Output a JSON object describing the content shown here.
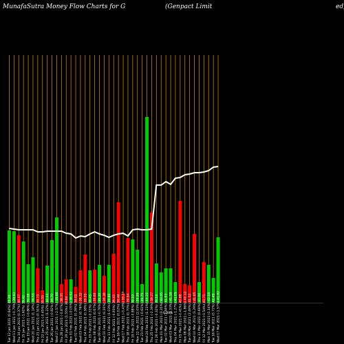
{
  "chart_data": {
    "type": "bar",
    "title_left": "MunafaSutra  Money Flow  Charts for G",
    "title_mid": "(Genpact Limit",
    "title_right": "ed)",
    "mid_label": "0.00%",
    "categories": [
      "Wed 17 Mar 2021",
      "Tue 16 Mar 2021",
      "Mon 15 Mar 2021",
      "Fri 12 Mar 2021",
      "Thu 11 Mar 2021",
      "Wed 10 Mar 2021",
      "Tue 09 Mar 2021",
      "Mon 08 Mar 2021",
      "Fri 05 Mar 2021",
      "Thu 04 Mar 2021",
      "Wed 03 Mar 2021",
      "Tue 02 Mar 2021",
      "Mon 01 Mar 2021",
      "Fri 26 Feb 2021",
      "Thu 25 Feb 2021",
      "Wed 24 Feb 2021",
      "Tue 23 Feb 2021",
      "Mon 22 Feb 2021",
      "Fri 19 Feb 2021",
      "Thu 18 Feb 2021",
      "Wed 17 Feb 2021",
      "Tue 16 Feb 2021",
      "Fri 12 Feb 2021",
      "Thu 11 Feb 2021",
      "Wed 10 Feb 2021",
      "Tue 09 Feb 2021",
      "Mon 08 Feb 2021",
      "Fri 05 Feb 2021",
      "Thu 04 Feb 2021",
      "Wed 03 Feb 2021",
      "Tue 02 Feb 2021",
      "Mon 01 Feb 2021",
      "Fri 29 Jan 2021",
      "Thu 28 Jan 2021",
      "Wed 27 Jan 2021",
      "Tue 26 Jan 2021",
      "Mon 25 Jan 2021",
      "Fri 22 Jan 2021",
      "Thu 21 Jan 2021",
      "Wed 20 Jan 2021",
      "Tue 19 Jan 2021",
      "Fri 15 Jan 2021",
      "Thu 14 Jan 2021",
      "Wed 13 Jan 2021",
      "Tue 12 Jan 2021"
    ],
    "tick_labels": [
      "Wed 17 Mar 2021 (-1.57%) 41.82",
      "Tue 16 Mar 2021 (0.72%) 42.49",
      "Mon 15 Mar 2021 (1.14%) 42.18",
      "Fri 12 Mar 2021 (-0.54%) 41.71",
      "Thu 11 Mar 2021 (0.69%) 41.94",
      "Wed 10 Mar 2021 (1.29%) 41.65",
      "Tue 09 Mar 2021 (2.49%) 41.12",
      "Mon 08 Mar 2021 (-1.86%) 40.12",
      "Fri 05 Mar 2021 (-0.41%) 40.88",
      "Thu 04 Mar 2021 (-1.27%) 41.05",
      "Wed 03 Mar 2021 (1.33%) 41.58",
      "Tue 02 Mar 2021 (1.44%) 41.03",
      "Mon 01 Mar 2021 (3.35%) 40.45",
      "Fri 26 Feb 2021 (-0.32%) 39.14",
      "Thu 25 Feb 2021 (-2.39%) 39.27",
      "Wed 24 Feb 2021 (1.21%) 40.23",
      "Tue 23 Feb 2021 (-0.61%) 39.75",
      "Mon 22 Feb 2021 (2.05%) 39.99",
      "Fri 19 Feb 2021 (-0.88%) 39.19",
      "Thu 18 Feb 2021 (0.70%) 39.54",
      "Wed 17 Feb 2021 (-0.43%) 39.27",
      "Tue 16 Feb 2021 (0.02%) 39.44",
      "Fri 12 Feb 2021 (-0.93%) 39.43",
      "Thu 11 Feb 2021 (1.03%) 39.80",
      "Wed 10 Feb 2021 (0.00%) 39.39",
      "Tue 09 Feb 2021 (-0.76%) 39.39",
      "Mon 08 Feb 2021 (0.67%) 39.69",
      "Fri 05 Feb 2021 (-0.31%) 39.43",
      "Thu 04 Feb 2021 (0.58%) 39.55",
      "Wed 03 Feb 2021 (0.76%) 39.32",
      "Tue 02 Feb 2021 (0.26%) 39.02",
      "Mon 01 Feb 2021 (-0.05%) 38.92",
      "Fri 29 Jan 2021 (1.55%) 38.94",
      "Thu 28 Jan 2021 (-0.87%) 38.35",
      "Wed 27 Jan 2021 (-2.57%) 38.68",
      "Tue 26 Jan 2021 (-0.82%) 39.70",
      "Mon 25 Jan 2021 (1.22%) 40.03",
      "Fri 22 Jan 2021 (-0.45%) 39.55",
      "Thu 21 Jan 2021 (0.51%) 39.73",
      "Wed 20 Jan 2021 (1.14%) 39.53",
      "Tue 19 Jan 2021 (-0.86%) 39.08",
      "Fri 15 Jan 2021 (-1.62%) 39.42",
      "Thu 14 Jan 2021 (0.37%) 40.07",
      "Wed 13 Jan 2021 (-0.79%) 39.92",
      "Tue 12 Jan 2021 (0.64%) 40.24"
    ],
    "values": [
      95,
      36,
      55,
      59,
      30,
      100,
      25,
      27,
      148,
      30,
      50,
      50,
      44,
      57,
      131,
      270,
      27,
      77,
      92,
      94,
      13,
      146,
      71,
      55,
      39,
      55,
      48,
      47,
      70,
      47,
      23,
      34,
      34,
      27,
      124,
      91,
      54,
      18,
      50,
      66,
      56,
      89,
      98,
      104,
      105
    ],
    "colors": [
      "green",
      "green",
      "green",
      "red",
      "green",
      "red",
      "red",
      "red",
      "red",
      "green",
      "green",
      "green",
      "green",
      "green",
      "red",
      "green",
      "green",
      "green",
      "green",
      "red",
      "red",
      "red",
      "red",
      "green",
      "red",
      "green",
      "red",
      "green",
      "red",
      "red",
      "red",
      "green",
      "red",
      "red",
      "green",
      "green",
      "green",
      "red",
      "red",
      "green",
      "green",
      "green",
      "red",
      "green",
      "green"
    ],
    "line_values": [
      198,
      197,
      192,
      190,
      189,
      189,
      187,
      186,
      182,
      181,
      172,
      176,
      171,
      171,
      107,
      106,
      106,
      107,
      106,
      97,
      101,
      100,
      98,
      95,
      98,
      100,
      103,
      100,
      96,
      97,
      94,
      100,
      101,
      104,
      104,
      104,
      104,
      103,
      103,
      106,
      106,
      106,
      106,
      107,
      108
    ],
    "ylim": [
      0,
      440
    ],
    "colors_map": {
      "green": "#00cc00",
      "red": "#ff0000",
      "line": "#ffffff",
      "gridline": "#d08000",
      "background": "#000000"
    },
    "grid": true,
    "xlabel": "",
    "ylabel": ""
  }
}
